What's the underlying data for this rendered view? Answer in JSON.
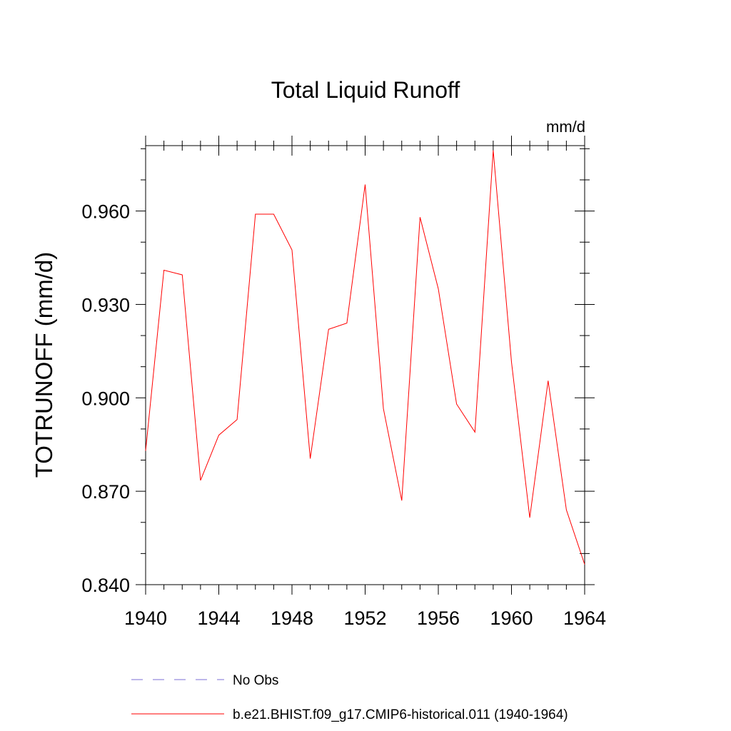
{
  "chart_data": {
    "type": "line",
    "title": "Total Liquid Runoff",
    "units": "mm/d",
    "ylabel": "TOTRUNOFF  (mm/d)",
    "xlabel": "",
    "xlim": [
      1940,
      1964
    ],
    "ylim": [
      0.84,
      0.981
    ],
    "x_ticks": [
      1940,
      1944,
      1948,
      1952,
      1956,
      1960,
      1964
    ],
    "x_tick_labels": [
      "1940",
      "1944",
      "1948",
      "1952",
      "1956",
      "1960",
      "1964"
    ],
    "y_ticks": [
      0.84,
      0.87,
      0.9,
      0.93,
      0.96
    ],
    "y_tick_labels": [
      "0.840",
      "0.870",
      "0.900",
      "0.930",
      "0.960"
    ],
    "y_minor_step": 0.01,
    "x_minor_step": 1,
    "grid": false,
    "legend_position": "bottom",
    "series": [
      {
        "name": "b.e21.BHIST.f09_g17.CMIP6-historical.011 (1940-1964)",
        "color": "#ff0000",
        "line_style": "solid",
        "x": [
          1940,
          1941,
          1942,
          1943,
          1944,
          1945,
          1946,
          1947,
          1948,
          1949,
          1950,
          1951,
          1952,
          1953,
          1954,
          1955,
          1956,
          1957,
          1958,
          1959,
          1960,
          1961,
          1962,
          1963,
          1964
        ],
        "y": [
          0.883,
          0.941,
          0.9395,
          0.8735,
          0.888,
          0.893,
          0.959,
          0.959,
          0.9475,
          0.8805,
          0.922,
          0.924,
          0.9685,
          0.8965,
          0.867,
          0.958,
          0.935,
          0.898,
          0.889,
          0.9795,
          0.9115,
          0.8615,
          0.9055,
          0.864,
          0.8465
        ]
      }
    ],
    "legend": [
      {
        "label": "No Obs",
        "color": "#7b6fd6",
        "line_style": "dashed"
      },
      {
        "label": "b.e21.BHIST.f09_g17.CMIP6-historical.011 (1940-1964)",
        "color": "#ff0000",
        "line_style": "solid"
      }
    ]
  }
}
